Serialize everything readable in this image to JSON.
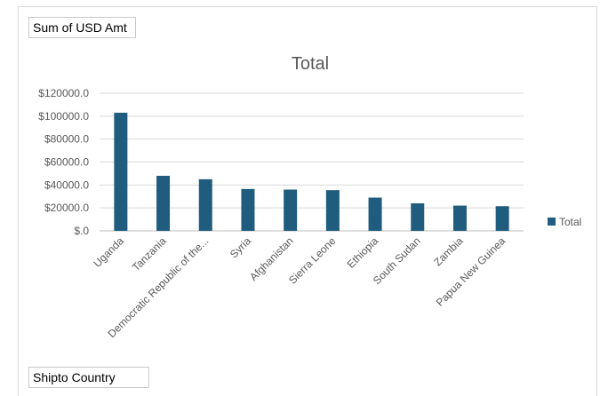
{
  "pivot": {
    "value_field": "Sum of USD Amt",
    "axis_field": "Shipto Country"
  },
  "chart_data": {
    "type": "bar",
    "title": "Total",
    "xlabel": "",
    "ylabel": "",
    "categories": [
      "Uganda",
      "Tanzania",
      "Democratic Republic of the...",
      "Syria",
      "Afghanistan",
      "Sierra Leone",
      "Ethiopia",
      "South Sudan",
      "Zambia",
      "Papua New Guinea"
    ],
    "series": [
      {
        "name": "Total",
        "values": [
          103000,
          48000,
          45000,
          36500,
          36000,
          35500,
          29000,
          24000,
          22000,
          21500
        ],
        "color": "#1f5c7d"
      }
    ],
    "ylim": [
      0,
      120000
    ],
    "yticks": [
      0,
      20000,
      40000,
      60000,
      80000,
      100000,
      120000
    ],
    "ytick_labels": [
      "$.0",
      "$20000.0",
      "$40000.0",
      "$60000.0",
      "$80000.0",
      "$100000.0",
      "$120000.0"
    ],
    "grid": true,
    "legend": "right",
    "gridline_color": "#d9d9d9",
    "axis_line_color": "#bfbfbf",
    "text_color": "#595959"
  }
}
